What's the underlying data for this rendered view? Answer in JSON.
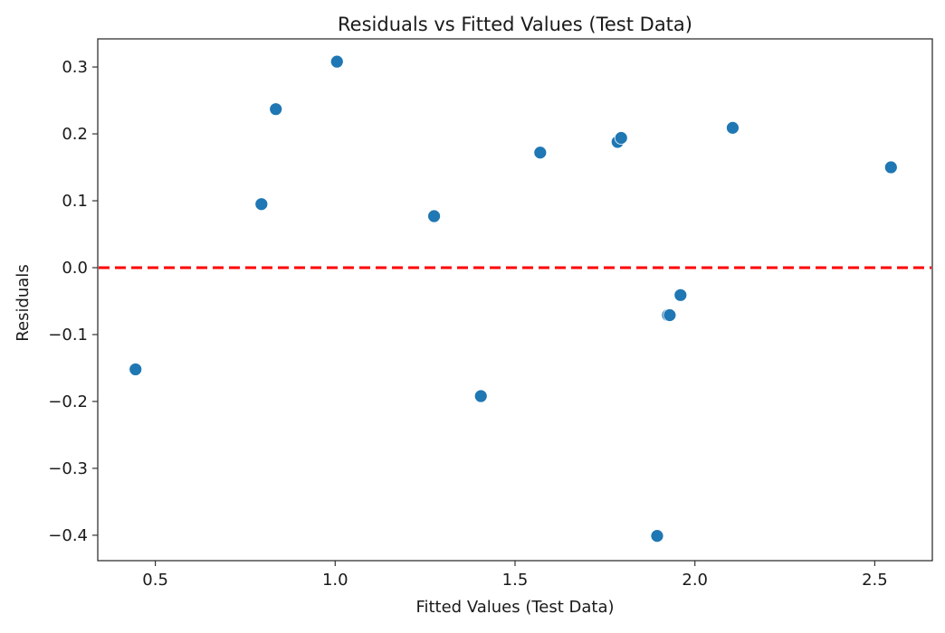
{
  "chart_data": {
    "type": "scatter",
    "title": "Residuals vs Fitted Values (Test Data)",
    "xlabel": "Fitted Values (Test Data)",
    "ylabel": "Residuals",
    "xlim": [
      0.34,
      2.66
    ],
    "ylim": [
      -0.438,
      0.342
    ],
    "xticks": [
      0.5,
      1.0,
      1.5,
      2.0,
      2.5
    ],
    "xtick_labels": [
      "0.5",
      "1.0",
      "1.5",
      "2.0",
      "2.5"
    ],
    "yticks": [
      0.3,
      0.2,
      0.1,
      0.0,
      -0.1,
      -0.2,
      -0.3,
      -0.4
    ],
    "ytick_labels": [
      "0.3",
      "0.2",
      "0.1",
      "0.0",
      "−0.1",
      "−0.2",
      "−0.3",
      "−0.4"
    ],
    "grid": false,
    "series": [
      {
        "color": "#1f77b4",
        "points": [
          {
            "x": 0.445,
            "y": -0.152
          },
          {
            "x": 0.795,
            "y": 0.095
          },
          {
            "x": 0.835,
            "y": 0.237
          },
          {
            "x": 1.005,
            "y": 0.308
          },
          {
            "x": 1.275,
            "y": 0.077
          },
          {
            "x": 1.405,
            "y": -0.192
          },
          {
            "x": 1.57,
            "y": 0.172
          },
          {
            "x": 1.785,
            "y": 0.188
          },
          {
            "x": 1.795,
            "y": 0.194
          },
          {
            "x": 1.895,
            "y": -0.401
          },
          {
            "x": 1.925,
            "y": -0.071
          },
          {
            "x": 1.93,
            "y": -0.071
          },
          {
            "x": 1.96,
            "y": -0.041
          },
          {
            "x": 2.105,
            "y": 0.209
          },
          {
            "x": 2.545,
            "y": 0.15
          }
        ]
      }
    ],
    "reference_lines": [
      {
        "orientation": "horizontal",
        "y": 0.0,
        "color": "#ff0000",
        "style": "dashed"
      }
    ]
  }
}
